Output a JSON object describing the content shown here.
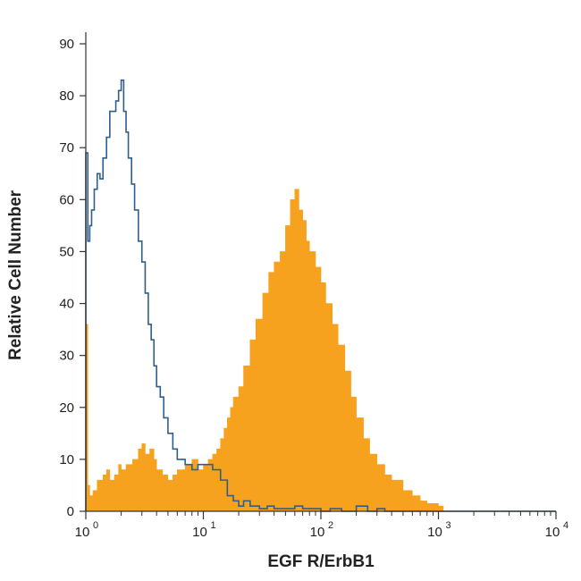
{
  "chart_data": {
    "type": "area",
    "title": "",
    "xlabel": "EGF R/ErbB1",
    "ylabel": "Relative Cell Number",
    "xscale": "log",
    "xlim": [
      1,
      10000
    ],
    "ylim": [
      0,
      90
    ],
    "grid": false,
    "legend": "none",
    "x_tick_labels": [
      {
        "base": "10",
        "exp": "0"
      },
      {
        "base": "10",
        "exp": "1"
      },
      {
        "base": "10",
        "exp": "2"
      },
      {
        "base": "10",
        "exp": "3"
      },
      {
        "base": "10",
        "exp": "4"
      }
    ],
    "y_ticks": [
      "0",
      "10",
      "20",
      "30",
      "40",
      "50",
      "60",
      "70",
      "80",
      "90"
    ],
    "series": [
      {
        "style": "filled",
        "color": "#f7a21f",
        "x": [
          1.0,
          1.04,
          1.08,
          1.15,
          1.25,
          1.4,
          1.5,
          1.6,
          1.75,
          1.9,
          2.0,
          2.2,
          2.5,
          2.8,
          3.0,
          3.2,
          3.5,
          3.8,
          4.0,
          4.5,
          5.0,
          5.5,
          6.0,
          7.0,
          8.0,
          9.0,
          10.0,
          11.0,
          12.0,
          13.0,
          14.0,
          15.0,
          16.0,
          17.0,
          18.0,
          20.0,
          22.0,
          25.0,
          28.0,
          32.0,
          36.0,
          40.0,
          45.0,
          50.0,
          55.0,
          60.0,
          65.0,
          70.0,
          75.0,
          80.0,
          90.0,
          100.0,
          110.0,
          125.0,
          140.0,
          160.0,
          180.0,
          200.0,
          230.0,
          260.0,
          300.0,
          350.0,
          400.0,
          500.0,
          600.0,
          700.0,
          800.0,
          1000.0,
          1100.0
        ],
        "y": [
          36,
          5,
          3,
          4,
          6,
          7,
          8,
          6,
          7,
          9,
          8,
          9,
          10,
          12,
          13,
          11,
          12,
          10,
          8,
          7,
          6,
          7,
          8,
          9,
          10,
          8,
          9,
          10,
          11,
          12,
          14,
          16,
          18,
          20,
          22,
          24,
          28,
          33,
          37,
          42,
          46,
          48,
          50,
          55,
          60,
          62,
          58,
          56,
          52,
          50,
          47,
          44,
          40,
          36,
          32,
          27,
          22,
          18,
          14,
          11,
          9,
          7,
          6,
          4,
          3,
          2,
          1.5,
          1,
          0
        ]
      },
      {
        "style": "outline",
        "color": "#2e5f8a",
        "x": [
          1.0,
          1.04,
          1.08,
          1.12,
          1.18,
          1.25,
          1.32,
          1.4,
          1.5,
          1.6,
          1.7,
          1.8,
          1.9,
          2.0,
          2.1,
          2.2,
          2.3,
          2.45,
          2.6,
          2.8,
          3.0,
          3.2,
          3.4,
          3.6,
          3.8,
          4.0,
          4.3,
          4.6,
          5.0,
          5.5,
          6.0,
          7.0,
          8.0,
          9.0,
          10.0,
          12.0,
          14.0,
          16.0,
          18.0,
          20.0,
          22.0,
          25.0,
          30.0,
          35.0,
          40.0,
          50.0,
          60.0,
          70.0,
          80.0,
          100.0,
          120.0,
          150.0,
          200.0,
          250.0,
          300.0,
          350.0,
          400.0,
          600.0,
          1000.0,
          10000.0
        ],
        "y": [
          69,
          52,
          55,
          58,
          62,
          65,
          64,
          68,
          72,
          77,
          77,
          79,
          81,
          83,
          77,
          73,
          68,
          63,
          58,
          52,
          48,
          42,
          36,
          33,
          28,
          24,
          22,
          18,
          15,
          12,
          10,
          9,
          8,
          9,
          9,
          8,
          6,
          3,
          2,
          1,
          2,
          1,
          0.5,
          1,
          0.5,
          0.5,
          1,
          0.5,
          0.5,
          0,
          0.5,
          0,
          1,
          0,
          0.5,
          0,
          0,
          0,
          0,
          0
        ]
      }
    ]
  }
}
